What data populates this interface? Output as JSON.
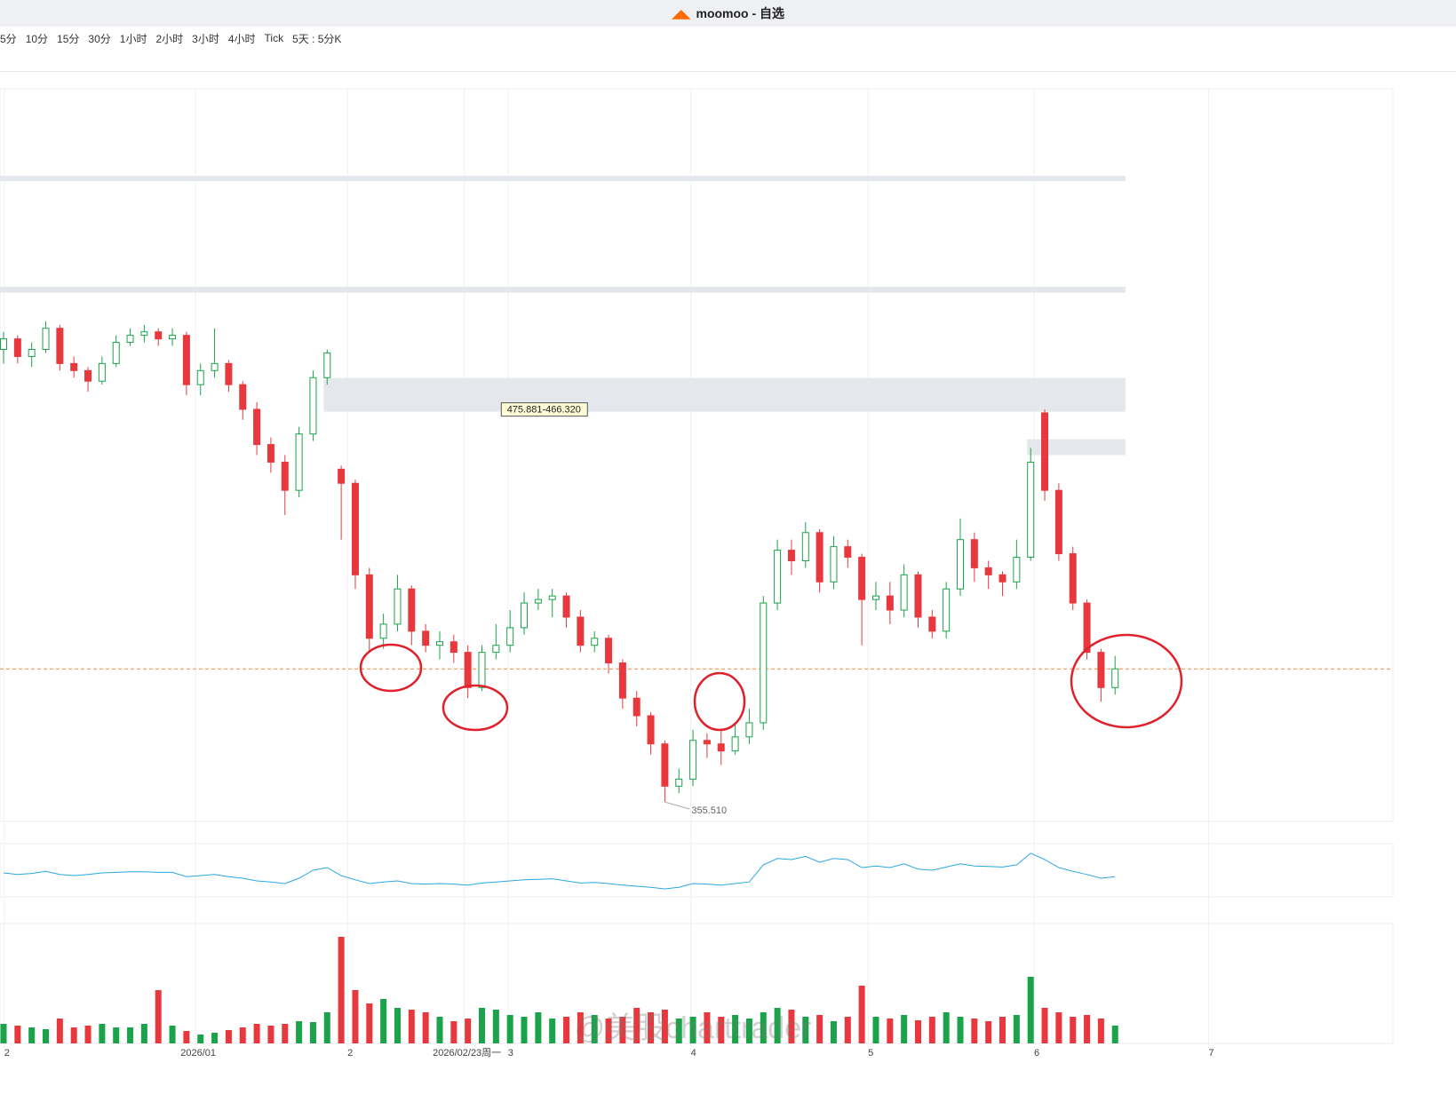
{
  "window": {
    "title": "moomoo - 自选"
  },
  "toolbar": {
    "intervals": [
      "5分",
      "10分",
      "15分",
      "30分",
      "1小时",
      "2小时",
      "3小时",
      "4小时",
      "Tick",
      "5天 : 5分K"
    ]
  },
  "watermark": "@美股charttrader",
  "chart_data": {
    "type": "candlestick",
    "xlim": [
      0,
      99
    ],
    "ylim": [
      350,
      558
    ],
    "up_color": "#1aa34a",
    "down_color": "#e8383d",
    "xticks": [
      {
        "value": 0.3,
        "label": "2"
      },
      {
        "value": 13.9,
        "label": "2026/01"
      },
      {
        "value": 24.7,
        "label": "2"
      },
      {
        "value": 33,
        "label": "2026/02/23周一"
      },
      {
        "value": 36.1,
        "label": "3"
      },
      {
        "value": 49.1,
        "label": "4"
      },
      {
        "value": 61.7,
        "label": "5"
      },
      {
        "value": 73.5,
        "label": "6"
      },
      {
        "value": 85.9,
        "label": "7"
      }
    ],
    "ohlc": [
      [
        484,
        489,
        480,
        487
      ],
      [
        487,
        488,
        480,
        482
      ],
      [
        482,
        486,
        479,
        484
      ],
      [
        484,
        492,
        483,
        490
      ],
      [
        490,
        491,
        478,
        480
      ],
      [
        480,
        482,
        476,
        478
      ],
      [
        478,
        479,
        472,
        475
      ],
      [
        475,
        482,
        474,
        480
      ],
      [
        480,
        488,
        479,
        486
      ],
      [
        486,
        490,
        485,
        488
      ],
      [
        488,
        491,
        486,
        489
      ],
      [
        489,
        490,
        485,
        487
      ],
      [
        487,
        490,
        485,
        488
      ],
      [
        488,
        489,
        471,
        474
      ],
      [
        474,
        480,
        471,
        478
      ],
      [
        478,
        490,
        476,
        480
      ],
      [
        480,
        481,
        472,
        474
      ],
      [
        474,
        475,
        464,
        467
      ],
      [
        467,
        469,
        454,
        457
      ],
      [
        457,
        459,
        449,
        452
      ],
      [
        452,
        454,
        437,
        444
      ],
      [
        444,
        462,
        442,
        460
      ],
      [
        460,
        478,
        458,
        476
      ],
      [
        476,
        484,
        474,
        483
      ],
      [
        450,
        451,
        430,
        446
      ],
      [
        446,
        447,
        416,
        420
      ],
      [
        420,
        422,
        398,
        402
      ],
      [
        402,
        409,
        399,
        406
      ],
      [
        406,
        420,
        404,
        416
      ],
      [
        416,
        417,
        400,
        404
      ],
      [
        404,
        406,
        398,
        400
      ],
      [
        400,
        404,
        396,
        401
      ],
      [
        401,
        403,
        395,
        398
      ],
      [
        398,
        400,
        385,
        388
      ],
      [
        388,
        400,
        387,
        398
      ],
      [
        398,
        406,
        396,
        400
      ],
      [
        400,
        410,
        398,
        405
      ],
      [
        405,
        415,
        403,
        412
      ],
      [
        412,
        416,
        410,
        413
      ],
      [
        413,
        416,
        408,
        414
      ],
      [
        414,
        415,
        405,
        408
      ],
      [
        408,
        410,
        398,
        400
      ],
      [
        400,
        404,
        398,
        402
      ],
      [
        402,
        403,
        392,
        395
      ],
      [
        395,
        396,
        382,
        385
      ],
      [
        385,
        387,
        377,
        380
      ],
      [
        380,
        381,
        369,
        372
      ],
      [
        372,
        373,
        355.51,
        360
      ],
      [
        360,
        365,
        358,
        362
      ],
      [
        362,
        376,
        360,
        373
      ],
      [
        373,
        375,
        368,
        372
      ],
      [
        372,
        376,
        366,
        370
      ],
      [
        370,
        378,
        369,
        374
      ],
      [
        374,
        382,
        372,
        378
      ],
      [
        378,
        414,
        376,
        412
      ],
      [
        412,
        430,
        410,
        427
      ],
      [
        427,
        430,
        420,
        424
      ],
      [
        424,
        435,
        422,
        432
      ],
      [
        432,
        433,
        415,
        418
      ],
      [
        418,
        431,
        416,
        428
      ],
      [
        428,
        430,
        422,
        425
      ],
      [
        425,
        426,
        400,
        413
      ],
      [
        413,
        418,
        410,
        414
      ],
      [
        414,
        418,
        406,
        410
      ],
      [
        410,
        423,
        408,
        420
      ],
      [
        420,
        421,
        405,
        408
      ],
      [
        408,
        410,
        402,
        404
      ],
      [
        404,
        418,
        402,
        416
      ],
      [
        416,
        436,
        414,
        430
      ],
      [
        430,
        432,
        418,
        422
      ],
      [
        422,
        424,
        416,
        420
      ],
      [
        420,
        421,
        414,
        418
      ],
      [
        418,
        430,
        416,
        425
      ],
      [
        425,
        456,
        424,
        452
      ],
      [
        466,
        467,
        441,
        444
      ],
      [
        444,
        446,
        424,
        426
      ],
      [
        426,
        428,
        410,
        412
      ],
      [
        412,
        413,
        396,
        398
      ],
      [
        398,
        399,
        384,
        388
      ],
      [
        388,
        397,
        386,
        393.3
      ]
    ],
    "zones": [
      {
        "from": 0,
        "to": 80,
        "low": 531.8,
        "high": 533.3
      },
      {
        "from": 0,
        "to": 80,
        "low": 500.1,
        "high": 501.8
      },
      {
        "from": 23,
        "to": 80,
        "low": 466.32,
        "high": 475.881,
        "label": "475.881-466.320"
      },
      {
        "from": 73,
        "to": 80,
        "low": 454,
        "high": 458.5
      }
    ],
    "low_label": {
      "index": 47,
      "value": 355.51,
      "label": "355.510"
    },
    "last_price": 393.3,
    "indicator": {
      "color": "#29a8e0",
      "ylim": [
        0,
        100
      ],
      "values": [
        45,
        42,
        44,
        48,
        42,
        40,
        42,
        45,
        46,
        47,
        47,
        46,
        46,
        38,
        40,
        42,
        38,
        35,
        30,
        28,
        25,
        35,
        50,
        55,
        40,
        32,
        25,
        28,
        30,
        25,
        24,
        25,
        24,
        22,
        26,
        28,
        30,
        32,
        33,
        34,
        30,
        26,
        27,
        25,
        22,
        20,
        18,
        15,
        18,
        25,
        24,
        22,
        25,
        28,
        60,
        72,
        70,
        76,
        65,
        72,
        70,
        55,
        58,
        55,
        62,
        52,
        50,
        56,
        62,
        58,
        57,
        56,
        60,
        82,
        70,
        55,
        48,
        42,
        35,
        38
      ]
    },
    "volume": {
      "ylim": [
        0,
        130
      ],
      "values": [
        22,
        20,
        18,
        16,
        28,
        18,
        20,
        22,
        18,
        18,
        22,
        60,
        20,
        14,
        10,
        12,
        15,
        18,
        22,
        20,
        22,
        25,
        24,
        35,
        120,
        60,
        45,
        50,
        40,
        38,
        35,
        30,
        25,
        28,
        40,
        38,
        32,
        30,
        35,
        28,
        30,
        35,
        32,
        28,
        30,
        40,
        35,
        38,
        28,
        30,
        35,
        30,
        32,
        28,
        35,
        40,
        38,
        30,
        32,
        25,
        30,
        65,
        30,
        28,
        32,
        26,
        30,
        35,
        30,
        28,
        25,
        30,
        32,
        75,
        40,
        35,
        30,
        32,
        28,
        20
      ]
    }
  }
}
